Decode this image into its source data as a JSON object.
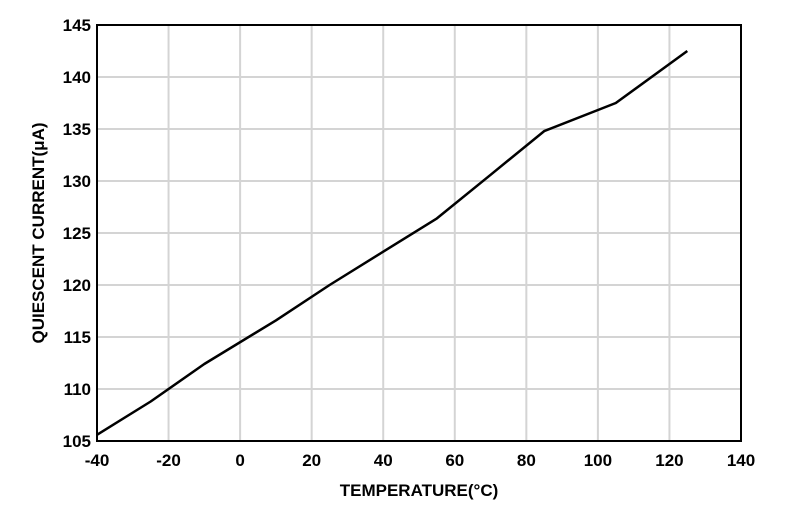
{
  "chart_data": {
    "type": "line",
    "title": "",
    "xlabel": "TEMPERATURE(°C)",
    "ylabel": "QUIESCENT CURRENT(μA)",
    "xlim": [
      -40,
      140
    ],
    "ylim": [
      105,
      145
    ],
    "xticks": [
      "-40",
      "-20",
      "0",
      "20",
      "40",
      "60",
      "80",
      "100",
      "120",
      "140"
    ],
    "yticks": [
      "105",
      "110",
      "115",
      "120",
      "125",
      "130",
      "135",
      "140",
      "145"
    ],
    "grid": true,
    "series": [
      {
        "x": [
          -40,
          -25,
          -10,
          10,
          25,
          40,
          55,
          70,
          85,
          105,
          125
        ],
        "y": [
          105.6,
          108.8,
          112.4,
          116.6,
          120.0,
          123.2,
          126.4,
          130.6,
          134.8,
          137.5,
          142.5
        ]
      }
    ]
  }
}
